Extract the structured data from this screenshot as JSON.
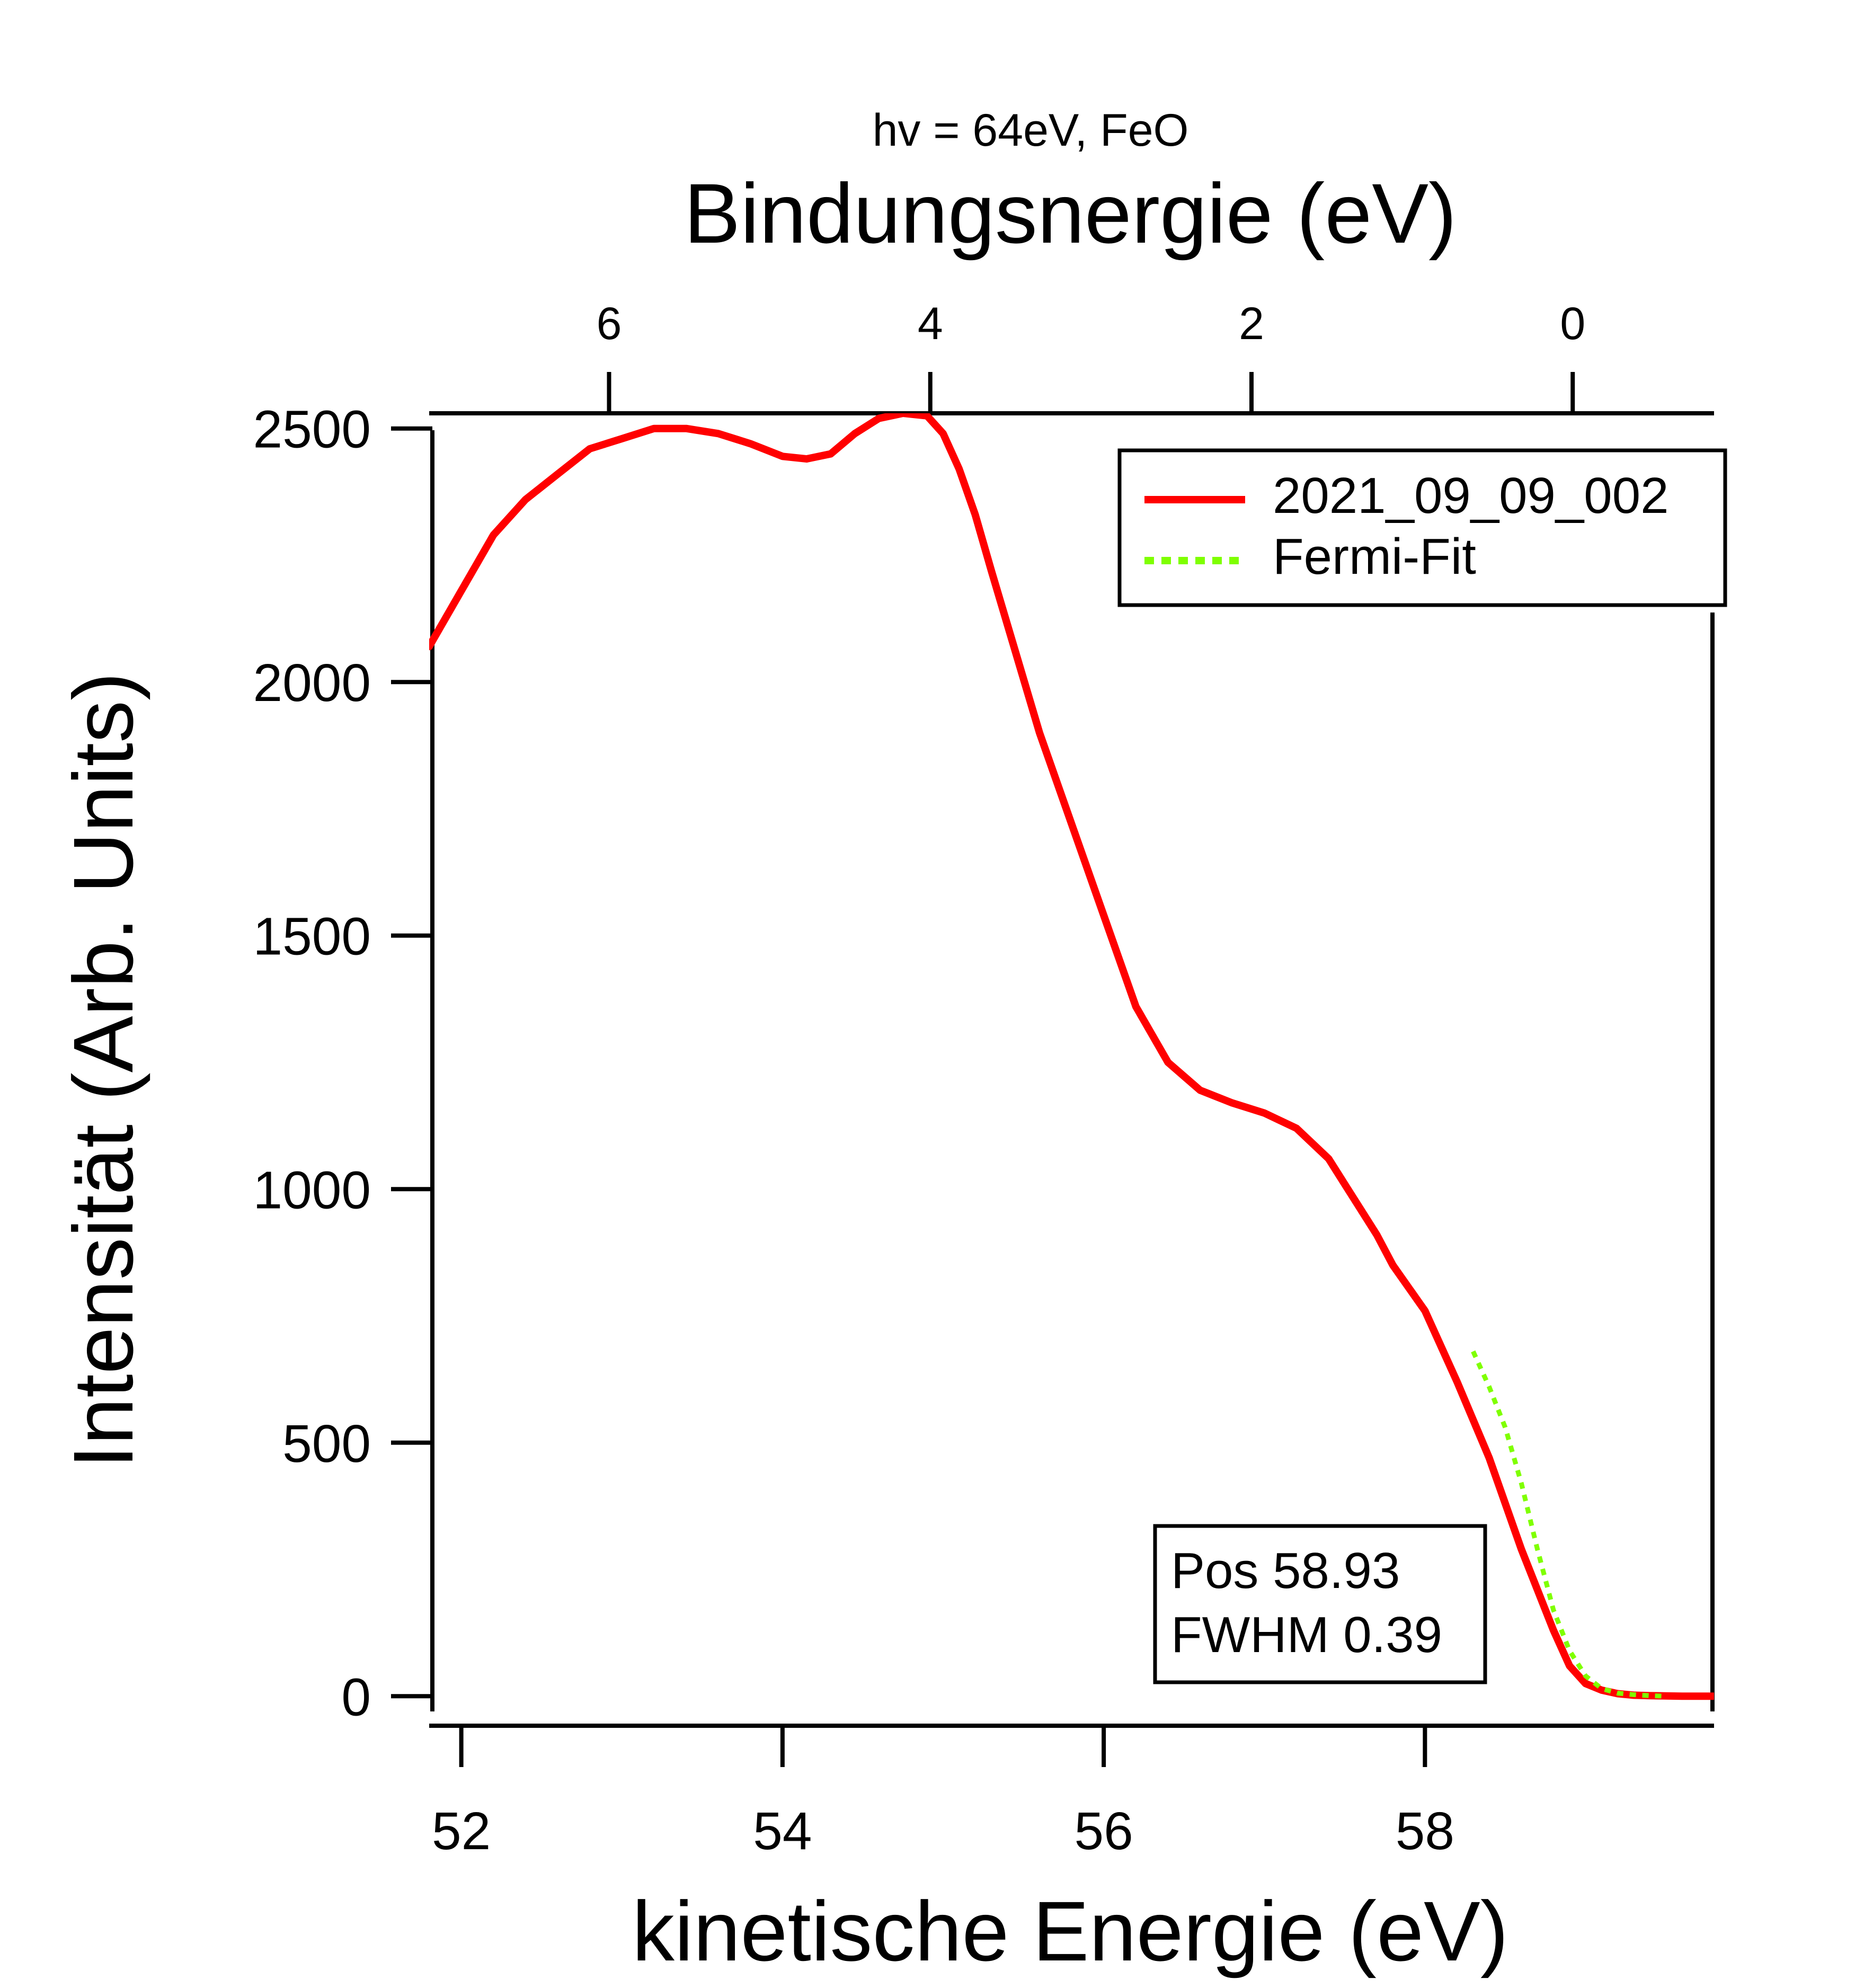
{
  "chart_data": {
    "type": "line",
    "title": "hv = 64eV, FeO",
    "xlabel": "kinetische Energie (eV)",
    "ylabel": "Intensität (Arb. Units)",
    "x2label": "Bindungsnergie (eV)",
    "xlim": [
      51.8,
      59.8
    ],
    "ylim": [
      -30,
      2530
    ],
    "x2lim": [
      7.12,
      -0.88
    ],
    "xticks": [
      52,
      54,
      56,
      58
    ],
    "yticks": [
      0,
      500,
      1000,
      1500,
      2000,
      2500
    ],
    "x2ticks": [
      6,
      4,
      2,
      0
    ],
    "grid": false,
    "legend_position": "top-right",
    "colors": {
      "data": "#ff0000",
      "fit": "#7fff00",
      "axis": "#000000"
    },
    "series": [
      {
        "name": "2021_09_09_002",
        "style": "solid",
        "x": [
          51.8,
          52.0,
          52.2,
          52.4,
          52.6,
          52.8,
          53.0,
          53.2,
          53.4,
          53.6,
          53.8,
          54.0,
          54.15,
          54.3,
          54.45,
          54.6,
          54.75,
          54.9,
          55.0,
          55.1,
          55.2,
          55.3,
          55.45,
          55.6,
          55.8,
          56.0,
          56.2,
          56.4,
          56.6,
          56.8,
          57.0,
          57.2,
          57.4,
          57.5,
          57.6,
          57.7,
          57.8,
          58.0,
          58.2,
          58.4,
          58.6,
          58.8,
          58.9,
          59.0,
          59.1,
          59.2,
          59.3,
          59.4,
          59.6,
          59.8
        ],
        "y": [
          2070,
          2180,
          2290,
          2360,
          2410,
          2460,
          2480,
          2500,
          2500,
          2490,
          2470,
          2445,
          2440,
          2450,
          2490,
          2520,
          2530,
          2525,
          2490,
          2420,
          2330,
          2220,
          2060,
          1900,
          1720,
          1540,
          1360,
          1250,
          1195,
          1170,
          1150,
          1120,
          1060,
          1010,
          960,
          910,
          850,
          760,
          620,
          470,
          290,
          130,
          60,
          25,
          12,
          5,
          2,
          1,
          0,
          0
        ]
      },
      {
        "name": "Fermi-Fit",
        "style": "dotted",
        "x": [
          58.3,
          58.4,
          58.5,
          58.6,
          58.7,
          58.8,
          58.9,
          59.0,
          59.1,
          59.2,
          59.3,
          59.4,
          59.5
        ],
        "y": [
          680,
          610,
          530,
          420,
          290,
          170,
          90,
          40,
          15,
          6,
          3,
          1,
          0
        ]
      }
    ]
  },
  "annotation": {
    "lines": [
      "Pos 58.93",
      "FWHM 0.39"
    ]
  }
}
